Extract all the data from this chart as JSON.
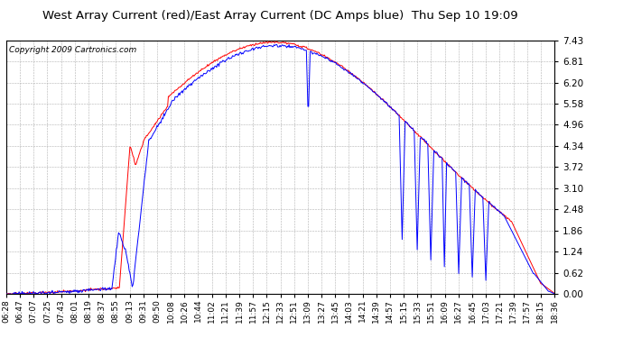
{
  "title": "West Array Current (red)/East Array Current (DC Amps blue)  Thu Sep 10 19:09",
  "copyright": "Copyright 2009 Cartronics.com",
  "yticks": [
    0.0,
    0.62,
    1.24,
    1.86,
    2.48,
    3.1,
    3.72,
    4.34,
    4.96,
    5.58,
    6.2,
    6.81,
    7.43
  ],
  "ymin": 0.0,
  "ymax": 7.43,
  "bg_color": "#ffffff",
  "plot_bg_color": "#ffffff",
  "grid_color": "#b0b0b0",
  "red_color": "#ff0000",
  "blue_color": "#0000ff",
  "xtick_labels": [
    "06:28",
    "06:47",
    "07:07",
    "07:25",
    "07:43",
    "08:01",
    "08:19",
    "08:37",
    "08:55",
    "09:13",
    "09:31",
    "09:50",
    "10:08",
    "10:26",
    "10:44",
    "11:02",
    "11:21",
    "11:39",
    "11:57",
    "12:15",
    "12:33",
    "12:51",
    "13:09",
    "13:27",
    "13:45",
    "14:03",
    "14:21",
    "14:39",
    "14:57",
    "15:15",
    "15:33",
    "15:51",
    "16:09",
    "16:27",
    "16:45",
    "17:03",
    "17:21",
    "17:39",
    "17:57",
    "18:15",
    "18:36"
  ],
  "title_fontsize": 9.5,
  "copyright_fontsize": 6.5,
  "tick_fontsize": 6.5,
  "ytick_fontsize": 7.5
}
